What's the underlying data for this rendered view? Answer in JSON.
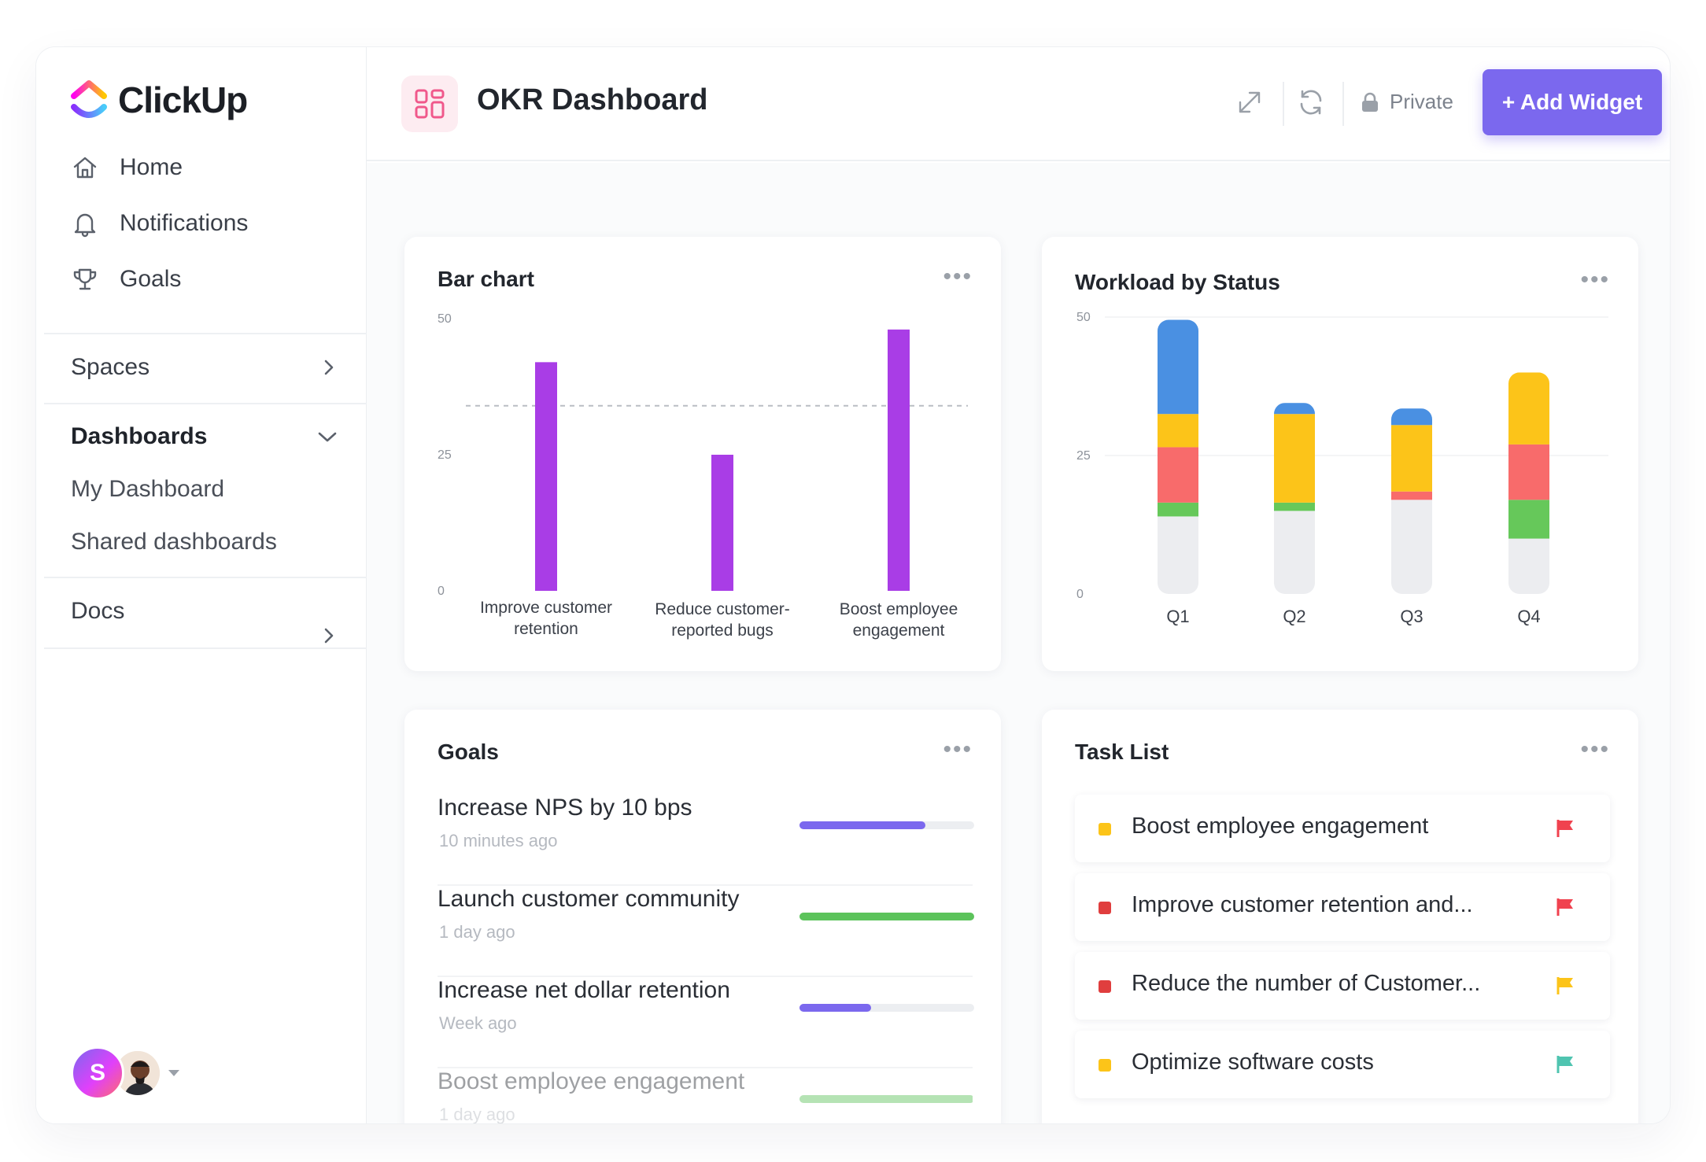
{
  "app": {
    "logo_text": "ClickUp"
  },
  "sidebar": {
    "nav": [
      {
        "label": "Home",
        "icon": "home-icon"
      },
      {
        "label": "Notifications",
        "icon": "bell-icon"
      },
      {
        "label": "Goals",
        "icon": "trophy-icon"
      }
    ],
    "spaces_label": "Spaces",
    "dashboards_label": "Dashboards",
    "dashboards_items": [
      "My Dashboard",
      "Shared dashboards"
    ],
    "docs_label": "Docs",
    "avatar_initial": "S"
  },
  "header": {
    "title": "OKR Dashboard",
    "private_label": "Private",
    "add_widget_label": "+ Add Widget"
  },
  "colors": {
    "accent": "#7b68ee",
    "bar_purple": "#a93de6",
    "blue": "#4a90e2",
    "yellow": "#fcc419",
    "red": "#f86b6b",
    "green": "#66c85a",
    "gray": "#ecedf0"
  },
  "bar_widget": {
    "title": "Bar chart",
    "menu": "•••"
  },
  "workload_widget": {
    "title": "Workload by Status",
    "menu": "•••"
  },
  "chart_data": [
    {
      "type": "bar",
      "title": "Bar chart",
      "categories": [
        [
          "Improve customer",
          "retention"
        ],
        [
          "Reduce customer-",
          "reported bugs"
        ],
        [
          "Boost employee",
          "engagement"
        ]
      ],
      "values": [
        42,
        25,
        48
      ],
      "target_line": 34,
      "ylim": [
        0,
        50
      ],
      "yticks": [
        0,
        25,
        50
      ]
    },
    {
      "type": "bar",
      "stacked": true,
      "title": "Workload by Status",
      "categories": [
        "Q1",
        "Q2",
        "Q3",
        "Q4"
      ],
      "ylim": [
        0,
        50
      ],
      "yticks": [
        0,
        25,
        50
      ],
      "series": [
        {
          "name": "gray",
          "color": "#ecedf0",
          "values": [
            14,
            15,
            17,
            10
          ]
        },
        {
          "name": "green",
          "color": "#66c85a",
          "values": [
            2.5,
            1.5,
            0,
            7
          ]
        },
        {
          "name": "red",
          "color": "#f86b6b",
          "values": [
            10,
            0,
            1.5,
            10
          ]
        },
        {
          "name": "yellow",
          "color": "#fcc419",
          "values": [
            6,
            16,
            12,
            13
          ]
        },
        {
          "name": "blue",
          "color": "#4a90e2",
          "values": [
            17,
            2,
            3,
            0
          ]
        }
      ]
    }
  ],
  "goals_widget": {
    "title": "Goals",
    "menu": "•••",
    "items": [
      {
        "name": "Increase NPS by 10 bps",
        "time": "10 minutes ago",
        "progress": 0.72,
        "color": "#7b68ee"
      },
      {
        "name": "Launch customer community",
        "time": "1 day ago",
        "progress": 1.0,
        "color": "#5cc35b"
      },
      {
        "name": "Increase net dollar retention",
        "time": "Week ago",
        "progress": 0.41,
        "color": "#7b68ee"
      },
      {
        "name": "Boost employee engagement",
        "time": "1 day ago",
        "progress": 1.0,
        "color": "#5cc35b"
      }
    ]
  },
  "tasks_widget": {
    "title": "Task List",
    "menu": "•••",
    "items": [
      {
        "name": "Boost employee engagement",
        "status_color": "#fcc419",
        "flag_color": "#f0424f"
      },
      {
        "name": "Improve customer retention and...",
        "status_color": "#e03e3e",
        "flag_color": "#f0424f"
      },
      {
        "name": "Reduce the number of Customer...",
        "status_color": "#e03e3e",
        "flag_color": "#fcc419"
      },
      {
        "name": "Optimize software costs",
        "status_color": "#fcc419",
        "flag_color": "#4fc4b0"
      }
    ]
  }
}
